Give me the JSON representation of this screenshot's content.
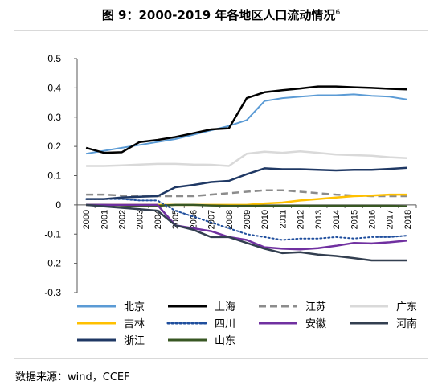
{
  "title": {
    "text": "图 9：2000-2019 年各地区人口流动情况",
    "note": "6"
  },
  "source": "数据来源：wind，CCEF",
  "chart_data": {
    "type": "line",
    "title": "图 9：2000-2019 年各地区人口流动情况",
    "xlabel": "",
    "ylabel": "",
    "x": [
      "2000",
      "2001",
      "2002",
      "2003",
      "2004",
      "2005",
      "2006",
      "2007",
      "2008",
      "2009",
      "2010",
      "2011",
      "2012",
      "2013",
      "2014",
      "2015",
      "2016",
      "2017",
      "2018"
    ],
    "ylim": [
      -0.3,
      0.5
    ],
    "yticks": [
      "0.5",
      "0.4",
      "0.3",
      "0.2",
      "0.1",
      "0",
      "-0.1",
      "-0.2",
      "-0.3"
    ],
    "grid": false,
    "legend_position": "bottom",
    "series": [
      {
        "name": "北京",
        "color": "#5b9bd5",
        "dash": "solid",
        "width": 2,
        "values": [
          0.175,
          0.185,
          0.195,
          0.205,
          0.215,
          0.225,
          0.24,
          0.255,
          0.27,
          0.29,
          0.355,
          0.365,
          0.37,
          0.375,
          0.375,
          0.378,
          0.373,
          0.37,
          0.36
        ]
      },
      {
        "name": "上海",
        "color": "#000000",
        "dash": "solid",
        "width": 2.5,
        "values": [
          0.195,
          0.178,
          0.18,
          0.215,
          0.222,
          0.232,
          0.245,
          0.258,
          0.262,
          0.365,
          0.385,
          0.392,
          0.398,
          0.405,
          0.405,
          0.402,
          0.4,
          0.397,
          0.395
        ]
      },
      {
        "name": "江苏",
        "color": "#8c8c8c",
        "dash": "dashed",
        "width": 2.5,
        "values": [
          0.035,
          0.035,
          0.032,
          0.03,
          0.03,
          0.03,
          0.03,
          0.035,
          0.04,
          0.045,
          0.05,
          0.05,
          0.045,
          0.04,
          0.035,
          0.032,
          0.03,
          0.03,
          0.03
        ]
      },
      {
        "name": "广东",
        "color": "#d9d9d9",
        "dash": "solid",
        "width": 2.5,
        "values": [
          0.133,
          0.133,
          0.135,
          0.138,
          0.14,
          0.14,
          0.138,
          0.137,
          0.133,
          0.175,
          0.182,
          0.178,
          0.183,
          0.178,
          0.172,
          0.17,
          0.168,
          0.163,
          0.16
        ]
      },
      {
        "name": "吉林",
        "color": "#ffc000",
        "dash": "solid",
        "width": 2.5,
        "values": [
          0.0,
          0.0,
          0.0,
          0.0,
          0.0,
          0.0,
          0.0,
          0.0,
          0.0,
          0.0,
          0.005,
          0.008,
          0.015,
          0.02,
          0.025,
          0.03,
          0.032,
          0.035,
          0.035
        ]
      },
      {
        "name": "四川",
        "color": "#1f4e9d",
        "dash": "dotted",
        "width": 2,
        "values": [
          0.02,
          0.02,
          0.02,
          0.015,
          0.015,
          -0.02,
          -0.04,
          -0.06,
          -0.08,
          -0.1,
          -0.11,
          -0.12,
          -0.115,
          -0.115,
          -0.11,
          -0.115,
          -0.11,
          -0.11,
          -0.105
        ]
      },
      {
        "name": "安徽",
        "color": "#7030a0",
        "dash": "solid",
        "width": 2.5,
        "values": [
          0.0,
          0.0,
          0.0,
          0.0,
          0.0,
          -0.07,
          -0.08,
          -0.09,
          -0.11,
          -0.12,
          -0.145,
          -0.15,
          -0.152,
          -0.148,
          -0.14,
          -0.13,
          -0.132,
          -0.128,
          -0.122
        ]
      },
      {
        "name": "河南",
        "color": "#333f50",
        "dash": "solid",
        "width": 2.5,
        "values": [
          0.0,
          -0.005,
          -0.01,
          -0.015,
          -0.02,
          -0.07,
          -0.085,
          -0.11,
          -0.11,
          -0.13,
          -0.15,
          -0.165,
          -0.162,
          -0.17,
          -0.175,
          -0.182,
          -0.19,
          -0.19,
          -0.19
        ]
      },
      {
        "name": "浙江",
        "color": "#1f3864",
        "dash": "solid",
        "width": 2.5,
        "values": [
          0.02,
          0.02,
          0.025,
          0.028,
          0.03,
          0.06,
          0.068,
          0.078,
          0.082,
          0.105,
          0.125,
          0.122,
          0.122,
          0.12,
          0.118,
          0.12,
          0.12,
          0.123,
          0.127
        ]
      },
      {
        "name": "山东",
        "color": "#385723",
        "dash": "solid",
        "width": 2.5,
        "values": [
          0.0,
          0.0,
          -0.002,
          -0.003,
          -0.003,
          0.0,
          0.0,
          -0.002,
          -0.003,
          -0.003,
          -0.003,
          -0.003,
          -0.003,
          -0.003,
          -0.003,
          -0.003,
          -0.003,
          -0.003,
          -0.005
        ]
      }
    ]
  }
}
